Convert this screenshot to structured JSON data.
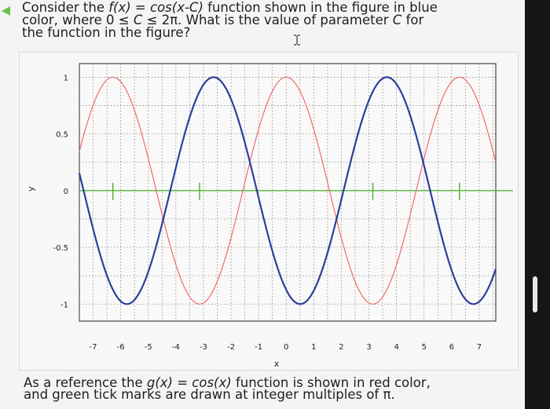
{
  "question": {
    "line1_a": "Consider the ",
    "line1_fx": "f(x)",
    "line1_b": " = ",
    "line1_expr": "cos(x-C)",
    "line1_c": " function shown in the figure in blue",
    "line2_a": "color, where 0 ≤ ",
    "line2_c": "C",
    "line2_b": " ≤ 2π. What is the value of parameter ",
    "line2_c2": "C",
    "line2_d": " for",
    "line3": "the function in the figure?"
  },
  "reference": {
    "line1_a": "As a reference the ",
    "line1_gx": "g(x)",
    "line1_b": " = ",
    "line1_expr": "cos(x)",
    "line1_c": " function is shown in red color,",
    "line2": "and green tick marks are drawn at integer multiples of π."
  },
  "chart_data": {
    "type": "line",
    "xlabel": "x",
    "ylabel": "y",
    "xlim": [
      -7.5,
      7.6
    ],
    "ylim": [
      -1.15,
      1.12
    ],
    "xticks": [
      -7,
      -6,
      -5,
      -4,
      -3,
      -2,
      -1,
      0,
      1,
      2,
      3,
      4,
      5,
      6,
      7
    ],
    "yticks": [
      -1,
      -0.5,
      0,
      0.5,
      1
    ],
    "ytick_labels": [
      "-1",
      "-0.5",
      "0",
      "0.5",
      "1"
    ],
    "grid": true,
    "series": [
      {
        "function": "cos(x-C)",
        "color": "#2b3f9a",
        "phase_shift": 3.65
      },
      {
        "function": "cos(x)",
        "color": "#f06a6a",
        "phase_shift": 0
      }
    ],
    "green_axis_color": "#55b43a",
    "green_tick_positions": [
      -6.2832,
      -3.1416,
      3.1416,
      6.2832
    ]
  },
  "colors": {
    "blue_curve": "#2b3f9a",
    "red_curve": "#f06a6a",
    "green_marks": "#55b43a"
  },
  "icons": {
    "back_arrow": "arrow-left-icon",
    "text_cursor": "ibeam-cursor-icon"
  }
}
